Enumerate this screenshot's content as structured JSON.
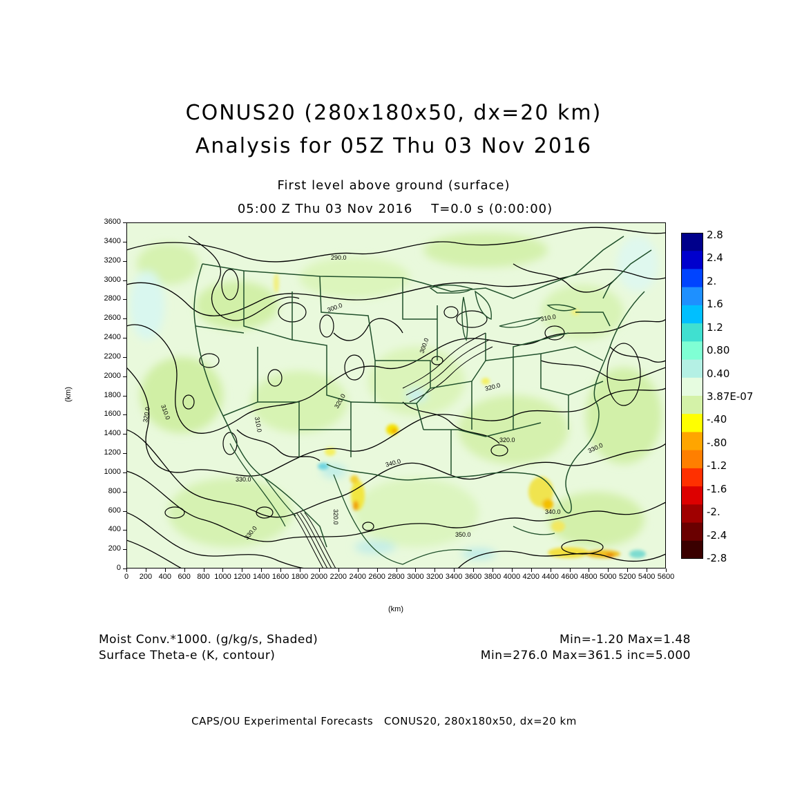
{
  "title": {
    "line1": "CONUS20 (280x180x50, dx=20 km)",
    "line2": "Analysis for 05Z Thu 03 Nov 2016"
  },
  "subtitle": {
    "level": "First level above ground (surface)",
    "time": "05:00 Z Thu 03 Nov 2016    T=0.0 s (0:00:00)"
  },
  "axes": {
    "x_label": "(km)",
    "y_label": "(km)",
    "x_ticks": [
      "0",
      "200",
      "400",
      "600",
      "800",
      "1000",
      "1200",
      "1400",
      "1600",
      "1800",
      "2000",
      "2200",
      "2400",
      "2600",
      "2800",
      "3000",
      "3200",
      "3400",
      "3600",
      "3800",
      "4000",
      "4200",
      "4400",
      "4600",
      "4800",
      "5000",
      "5200",
      "5400",
      "5600"
    ],
    "y_ticks": [
      "0",
      "200",
      "400",
      "600",
      "800",
      "1000",
      "1200",
      "1400",
      "1600",
      "1800",
      "2000",
      "2200",
      "2400",
      "2600",
      "2800",
      "3000",
      "3200",
      "3400",
      "3600"
    ],
    "x_range": [
      0,
      5600
    ],
    "y_range": [
      0,
      3600
    ]
  },
  "colorbar": {
    "labels": [
      "2.8",
      "2.4",
      "2.",
      "1.6",
      "1.2",
      "0.80",
      "0.40",
      "3.87E-07",
      "-.40",
      "-.80",
      "-1.2",
      "-1.6",
      "-2.",
      "-2.4",
      "-2.8"
    ],
    "colors": [
      "#00008b",
      "#0000cd",
      "#0044ff",
      "#1e90ff",
      "#00bfff",
      "#40e0d0",
      "#7fffd4",
      "#b4f0e4",
      "#e6fce0",
      "#d4f2a8",
      "#ffff00",
      "#ffa500",
      "#ff7f00",
      "#ff3000",
      "#dd0000",
      "#a00000",
      "#6a0000",
      "#3a0000"
    ]
  },
  "contour_labels": [
    "290.0",
    "300.0",
    "300.0",
    "310.0",
    "310.0",
    "310.0",
    "320.0",
    "320.0",
    "320.0",
    "320.0",
    "330.0",
    "330.0",
    "330.0",
    "340.0",
    "340.0",
    "350.0",
    "320.0"
  ],
  "footer": {
    "field1": "Moist Conv.*1000. (g/kg/s, Shaded)",
    "field1_stats": "Min=-1.20 Max=1.48",
    "field2": "Surface Theta-e (K, contour)",
    "field2_stats": "Min=276.0 Max=361.5 inc=5.000",
    "credit": "CAPS/OU Experimental Forecasts   CONUS20, 280x180x50, dx=20 km"
  }
}
